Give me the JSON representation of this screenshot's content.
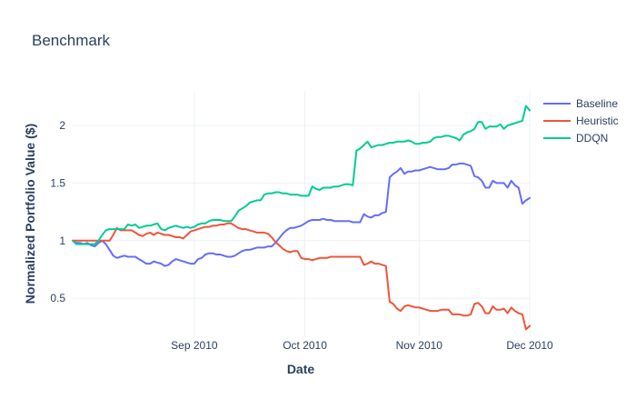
{
  "chart_data": {
    "type": "line",
    "title": "Benchmark",
    "xlabel": "Date",
    "ylabel": "Normalized Portfolio Value ($)",
    "x_tick_labels": [
      "Sep 2010",
      "Oct 2010",
      "Nov 2010",
      "Dec 2010"
    ],
    "x_tick_positions": [
      33,
      63,
      94,
      124
    ],
    "x_range": [
      0,
      124
    ],
    "y_ticks": [
      0.5,
      1,
      1.5,
      2
    ],
    "ylim": [
      0.17,
      2.3
    ],
    "grid": true,
    "legend_position": "top-right",
    "x": [
      0,
      1,
      2,
      3,
      4,
      5,
      6,
      7,
      8,
      9,
      10,
      11,
      12,
      13,
      14,
      15,
      16,
      17,
      18,
      19,
      20,
      21,
      22,
      23,
      24,
      25,
      26,
      27,
      28,
      29,
      30,
      31,
      32,
      33,
      34,
      35,
      36,
      37,
      38,
      39,
      40,
      41,
      42,
      43,
      44,
      45,
      46,
      47,
      48,
      49,
      50,
      51,
      52,
      53,
      54,
      55,
      56,
      57,
      58,
      59,
      60,
      61,
      62,
      63,
      64,
      65,
      66,
      67,
      68,
      69,
      70,
      71,
      72,
      73,
      74,
      75,
      76,
      77,
      78,
      79,
      80,
      81,
      82,
      83,
      84,
      85,
      86,
      87,
      88,
      89,
      90,
      91,
      92,
      93,
      94,
      95,
      96,
      97,
      98,
      99,
      100,
      101,
      102,
      103,
      104,
      105,
      106,
      107,
      108,
      109,
      110,
      111,
      112,
      113,
      114,
      115,
      116,
      117,
      118,
      119,
      120,
      121,
      122,
      123,
      124
    ],
    "series": [
      {
        "name": "Baseline",
        "color": "#636efa",
        "values": [
          1.0,
          0.98,
          0.98,
          0.97,
          0.98,
          0.96,
          0.95,
          0.98,
          1.0,
          0.97,
          0.92,
          0.87,
          0.85,
          0.86,
          0.87,
          0.86,
          0.86,
          0.86,
          0.84,
          0.82,
          0.8,
          0.8,
          0.82,
          0.81,
          0.8,
          0.78,
          0.79,
          0.82,
          0.84,
          0.83,
          0.82,
          0.81,
          0.8,
          0.8,
          0.84,
          0.85,
          0.88,
          0.89,
          0.89,
          0.88,
          0.88,
          0.87,
          0.86,
          0.86,
          0.87,
          0.89,
          0.91,
          0.92,
          0.92,
          0.93,
          0.94,
          0.94,
          0.94,
          0.95,
          0.95,
          0.98,
          1.02,
          1.06,
          1.09,
          1.11,
          1.11,
          1.12,
          1.13,
          1.15,
          1.17,
          1.18,
          1.18,
          1.18,
          1.19,
          1.18,
          1.18,
          1.17,
          1.17,
          1.17,
          1.17,
          1.17,
          1.16,
          1.16,
          1.16,
          1.23,
          1.21,
          1.2,
          1.22,
          1.22,
          1.24,
          1.25,
          1.55,
          1.58,
          1.6,
          1.63,
          1.58,
          1.6,
          1.6,
          1.61,
          1.61,
          1.62,
          1.63,
          1.64,
          1.63,
          1.62,
          1.62,
          1.62,
          1.63,
          1.66,
          1.66,
          1.67,
          1.67,
          1.66,
          1.65,
          1.56,
          1.55,
          1.52,
          1.46,
          1.46,
          1.52,
          1.5,
          1.5,
          1.5,
          1.46,
          1.52,
          1.48,
          1.46,
          1.32,
          1.35,
          1.37
        ]
      },
      {
        "name": "Heuristic",
        "color": "#ef553b",
        "values": [
          1.0,
          1.0,
          1.0,
          1.0,
          1.0,
          1.0,
          1.0,
          1.0,
          1.0,
          1.0,
          1.0,
          1.05,
          1.11,
          1.09,
          1.09,
          1.09,
          1.09,
          1.07,
          1.05,
          1.04,
          1.06,
          1.07,
          1.05,
          1.07,
          1.06,
          1.05,
          1.05,
          1.04,
          1.03,
          1.03,
          1.02,
          1.05,
          1.08,
          1.09,
          1.1,
          1.11,
          1.12,
          1.12,
          1.13,
          1.13,
          1.14,
          1.14,
          1.15,
          1.15,
          1.13,
          1.11,
          1.1,
          1.1,
          1.09,
          1.08,
          1.07,
          1.07,
          1.07,
          1.06,
          1.03,
          0.99,
          0.96,
          0.93,
          0.91,
          0.9,
          0.91,
          0.91,
          0.85,
          0.84,
          0.84,
          0.83,
          0.84,
          0.85,
          0.85,
          0.85,
          0.86,
          0.86,
          0.86,
          0.86,
          0.86,
          0.86,
          0.86,
          0.86,
          0.86,
          0.79,
          0.8,
          0.82,
          0.8,
          0.8,
          0.79,
          0.78,
          0.47,
          0.45,
          0.41,
          0.39,
          0.43,
          0.44,
          0.43,
          0.42,
          0.42,
          0.41,
          0.4,
          0.39,
          0.39,
          0.39,
          0.4,
          0.4,
          0.4,
          0.36,
          0.36,
          0.36,
          0.35,
          0.35,
          0.36,
          0.45,
          0.46,
          0.43,
          0.37,
          0.37,
          0.43,
          0.4,
          0.4,
          0.41,
          0.37,
          0.42,
          0.39,
          0.37,
          0.36,
          0.23,
          0.26
        ]
      },
      {
        "name": "DDQN",
        "color": "#00cc96",
        "values": [
          1.0,
          0.97,
          0.97,
          0.97,
          0.97,
          0.97,
          0.97,
          1.0,
          1.05,
          1.09,
          1.1,
          1.1,
          1.1,
          1.1,
          1.1,
          1.14,
          1.13,
          1.14,
          1.11,
          1.12,
          1.13,
          1.13,
          1.14,
          1.15,
          1.1,
          1.09,
          1.11,
          1.12,
          1.13,
          1.12,
          1.11,
          1.12,
          1.11,
          1.12,
          1.14,
          1.15,
          1.15,
          1.17,
          1.18,
          1.18,
          1.18,
          1.17,
          1.17,
          1.17,
          1.21,
          1.26,
          1.28,
          1.3,
          1.33,
          1.34,
          1.35,
          1.35,
          1.4,
          1.41,
          1.41,
          1.42,
          1.42,
          1.41,
          1.41,
          1.4,
          1.4,
          1.4,
          1.39,
          1.39,
          1.39,
          1.47,
          1.45,
          1.44,
          1.46,
          1.46,
          1.46,
          1.47,
          1.47,
          1.48,
          1.49,
          1.49,
          1.48,
          1.78,
          1.8,
          1.83,
          1.86,
          1.81,
          1.82,
          1.83,
          1.83,
          1.84,
          1.85,
          1.85,
          1.86,
          1.86,
          1.86,
          1.87,
          1.86,
          1.84,
          1.84,
          1.85,
          1.85,
          1.86,
          1.89,
          1.9,
          1.9,
          1.91,
          1.91,
          1.9,
          1.89,
          1.87,
          1.92,
          1.94,
          1.95,
          1.97,
          2.03,
          2.03,
          1.97,
          1.99,
          1.99,
          1.99,
          2.01,
          1.97,
          2.0,
          2.01,
          2.02,
          2.03,
          2.04,
          2.17,
          2.13
        ]
      }
    ]
  }
}
